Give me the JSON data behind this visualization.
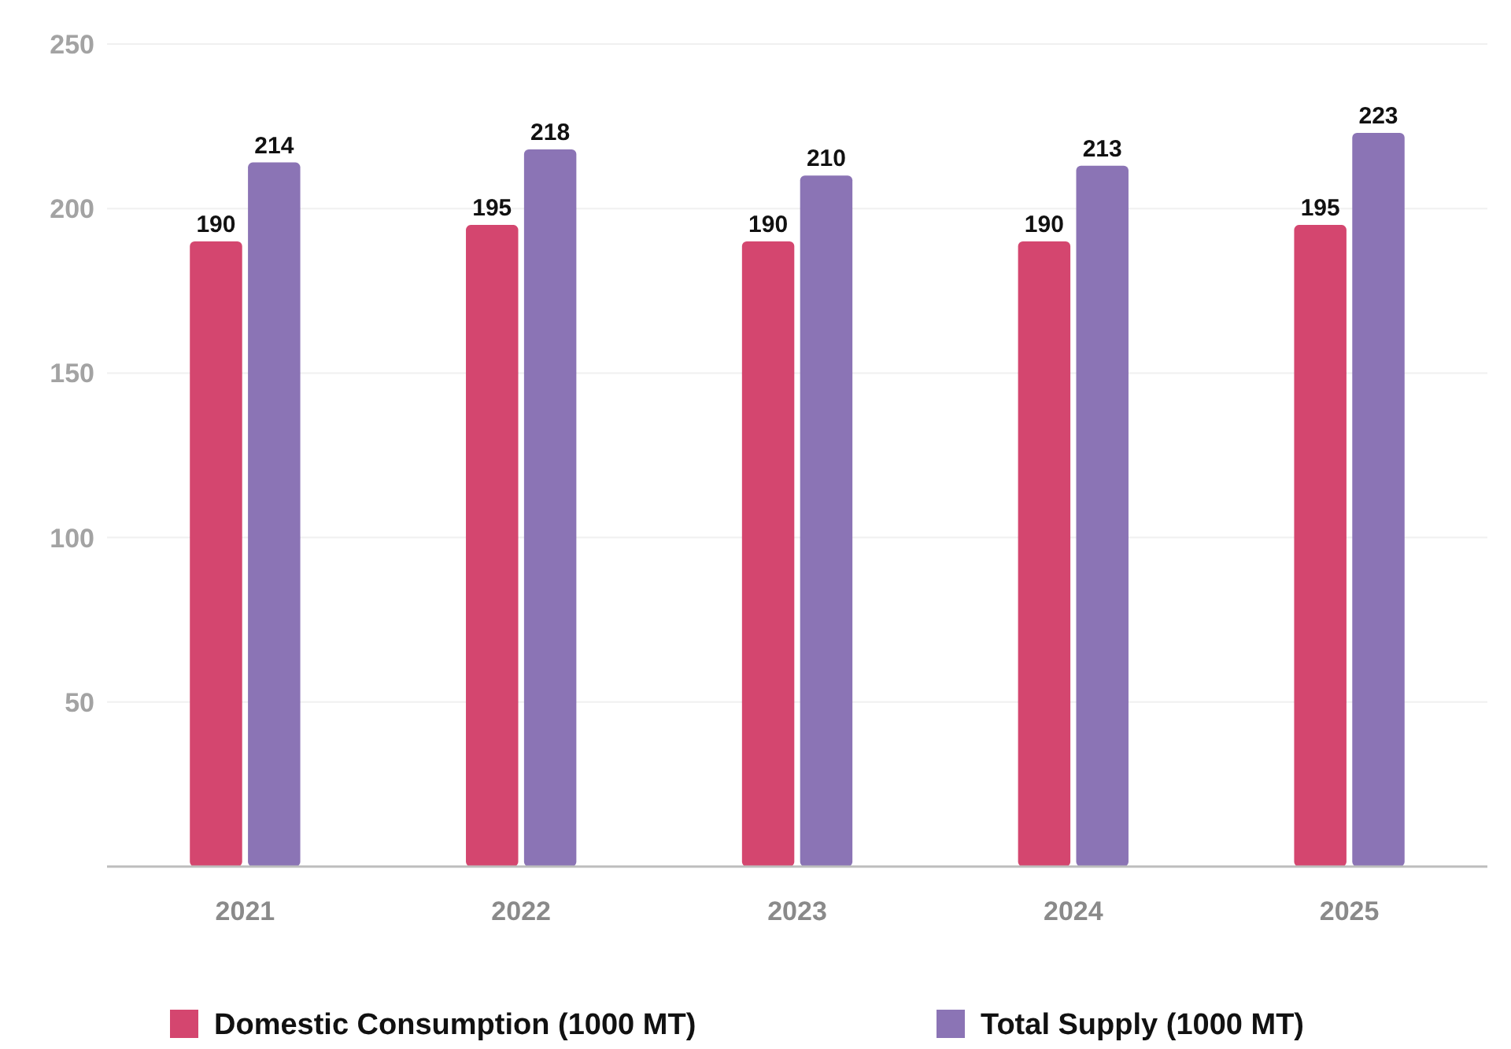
{
  "chart_data": {
    "type": "bar",
    "categories": [
      "2021",
      "2022",
      "2023",
      "2024",
      "2025"
    ],
    "series": [
      {
        "name": "Domestic Consumption (1000 MT)",
        "color": "#d4466f",
        "values": [
          190,
          195,
          190,
          190,
          195
        ]
      },
      {
        "name": "Total Supply (1000 MT)",
        "color": "#8b74b5",
        "values": [
          214,
          218,
          210,
          213,
          223
        ]
      }
    ],
    "ylim": [
      0,
      250
    ],
    "yticks": [
      50,
      100,
      150,
      200,
      250
    ],
    "grid": "y",
    "legend": "bottom",
    "data_labels": true
  }
}
